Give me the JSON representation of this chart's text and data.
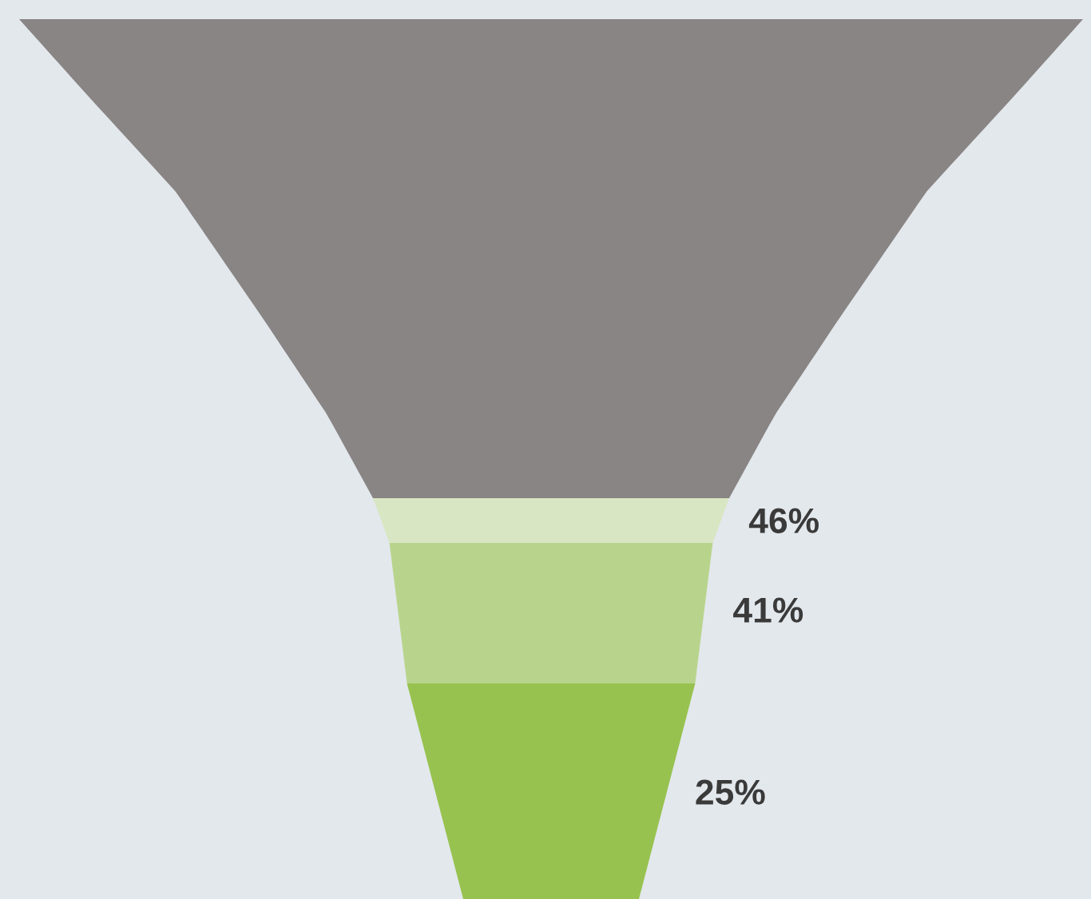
{
  "chart_data": {
    "type": "other",
    "categories": [
      null,
      null,
      null,
      null
    ],
    "values": [
      null,
      46,
      41,
      25
    ],
    "value_labels": [
      null,
      "46%",
      "41%",
      "25%"
    ],
    "colors": [
      "#898584",
      "#d9e6c3",
      "#b8d48c",
      "#97c24f"
    ]
  }
}
